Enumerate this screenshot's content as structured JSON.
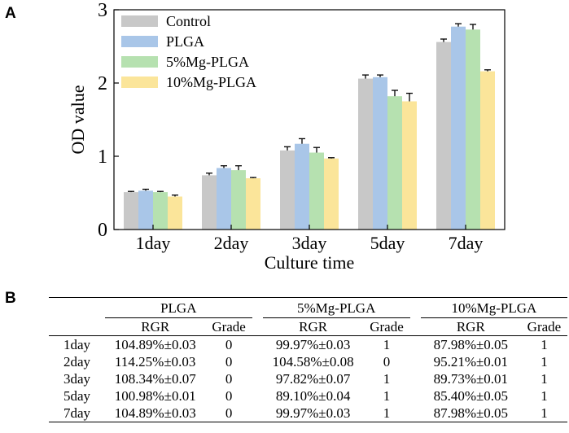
{
  "panels": {
    "a": "A",
    "b": "B"
  },
  "chart_data": {
    "type": "bar",
    "xlabel": "Culture time",
    "ylabel": "OD value",
    "ylim": [
      0,
      3
    ],
    "yticks": [
      0,
      1,
      2,
      3
    ],
    "legend_position": "top-left",
    "categories": [
      "1day",
      "2day",
      "3day",
      "5day",
      "7day"
    ],
    "series": [
      {
        "name": "Control",
        "color": "#c8c8c8",
        "values": [
          0.51,
          0.74,
          1.08,
          2.06,
          2.56
        ],
        "errors": [
          0.01,
          0.03,
          0.05,
          0.05,
          0.04
        ]
      },
      {
        "name": "PLGA",
        "color": "#a9c6e8",
        "values": [
          0.53,
          0.84,
          1.17,
          2.08,
          2.77
        ],
        "errors": [
          0.02,
          0.03,
          0.07,
          0.03,
          0.04
        ]
      },
      {
        "name": "5%Mg-PLGA",
        "color": "#b6e1b0",
        "values": [
          0.51,
          0.81,
          1.05,
          1.82,
          2.73
        ],
        "errors": [
          0.01,
          0.06,
          0.07,
          0.08,
          0.07
        ]
      },
      {
        "name": "10%Mg-PLGA",
        "color": "#fbe59a",
        "values": [
          0.45,
          0.7,
          0.97,
          1.75,
          2.16
        ],
        "errors": [
          0.02,
          0.01,
          0.01,
          0.11,
          0.02
        ]
      }
    ]
  },
  "table": {
    "groups": [
      "PLGA",
      "5%Mg-PLGA",
      "10%Mg-PLGA"
    ],
    "sub_rgr": "RGR",
    "sub_grade": "Grade",
    "rows": [
      {
        "label": "1day",
        "c": [
          "104.89%±0.03",
          "0",
          "99.97%±0.03",
          "1",
          "87.98%±0.05",
          "1"
        ]
      },
      {
        "label": "2day",
        "c": [
          "114.25%±0.03",
          "0",
          "104.58%±0.08",
          "0",
          "95.21%±0.01",
          "1"
        ]
      },
      {
        "label": "3day",
        "c": [
          "108.34%±0.07",
          "0",
          "97.82%±0.07",
          "1",
          "89.73%±0.01",
          "1"
        ]
      },
      {
        "label": "5day",
        "c": [
          "100.98%±0.01",
          "0",
          "89.10%±0.04",
          "1",
          "85.40%±0.05",
          "1"
        ]
      },
      {
        "label": "7day",
        "c": [
          "104.89%±0.03",
          "0",
          "99.97%±0.03",
          "1",
          "87.98%±0.05",
          "1"
        ]
      }
    ]
  }
}
